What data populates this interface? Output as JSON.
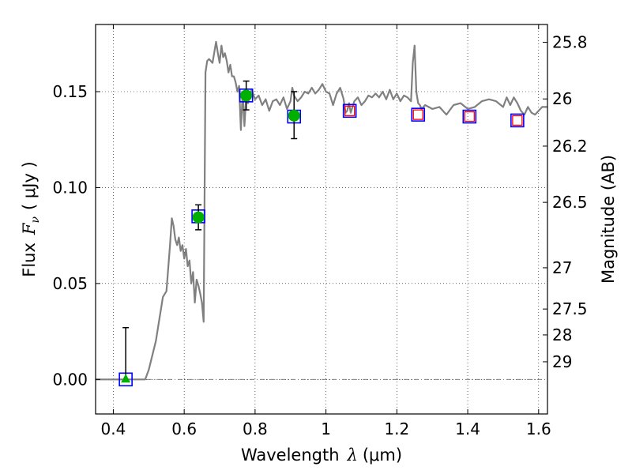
{
  "chart_data": {
    "type": "line",
    "xlabel_prefix": "Wavelength",
    "xlabel_symbol": "λ",
    "xlabel_unit": "(μm)",
    "ylabel_prefix": "Flux",
    "ylabel_symbol": "F",
    "ylabel_subscript": "ν",
    "ylabel_unit": "( μJy )",
    "y2label": "Magnitude (AB)",
    "xlim": [
      0.35,
      1.625
    ],
    "ylim": [
      -0.018,
      0.185
    ],
    "grid": true,
    "x_ticks": [
      0.4,
      0.6,
      0.8,
      1.0,
      1.2,
      1.4,
      1.6
    ],
    "x_tick_labels": [
      "0.4",
      "0.6",
      "0.8",
      "1",
      "1.2",
      "1.4",
      "1.6"
    ],
    "y_ticks": [
      0.0,
      0.05,
      0.1,
      0.15
    ],
    "y_tick_labels": [
      "0.00",
      "0.05",
      "0.10",
      "0.15"
    ],
    "y2_ticks": [
      {
        "label": "25.8",
        "flux": 0.1757
      },
      {
        "label": "26",
        "flux": 0.1462
      },
      {
        "label": "26.2",
        "flux": 0.1216
      },
      {
        "label": "26.5",
        "flux": 0.0923
      },
      {
        "label": "27",
        "flux": 0.0582
      },
      {
        "label": "27.5",
        "flux": 0.0367
      },
      {
        "label": "28",
        "flux": 0.0232
      },
      {
        "label": "29",
        "flux": 0.0092
      }
    ],
    "zero_line": 0.0,
    "model_spectrum": {
      "color": "#808080",
      "x": [
        0.35,
        0.49,
        0.5,
        0.52,
        0.54,
        0.55,
        0.56,
        0.565,
        0.57,
        0.575,
        0.58,
        0.585,
        0.59,
        0.595,
        0.6,
        0.605,
        0.61,
        0.615,
        0.62,
        0.625,
        0.63,
        0.635,
        0.64,
        0.645,
        0.65,
        0.655,
        0.66,
        0.665,
        0.67,
        0.68,
        0.69,
        0.695,
        0.7,
        0.705,
        0.71,
        0.715,
        0.72,
        0.725,
        0.73,
        0.735,
        0.74,
        0.745,
        0.75,
        0.755,
        0.76,
        0.765,
        0.77,
        0.775,
        0.78,
        0.79,
        0.8,
        0.81,
        0.82,
        0.83,
        0.84,
        0.85,
        0.86,
        0.87,
        0.88,
        0.89,
        0.9,
        0.905,
        0.91,
        0.92,
        0.93,
        0.94,
        0.95,
        0.96,
        0.97,
        0.98,
        0.99,
        1.0,
        1.01,
        1.02,
        1.03,
        1.04,
        1.05,
        1.055,
        1.06,
        1.065,
        1.07,
        1.08,
        1.09,
        1.1,
        1.11,
        1.12,
        1.13,
        1.14,
        1.15,
        1.16,
        1.17,
        1.18,
        1.19,
        1.2,
        1.21,
        1.22,
        1.23,
        1.24,
        1.245,
        1.25,
        1.255,
        1.26,
        1.265,
        1.27,
        1.28,
        1.3,
        1.32,
        1.34,
        1.36,
        1.38,
        1.4,
        1.42,
        1.44,
        1.46,
        1.48,
        1.5,
        1.51,
        1.52,
        1.53,
        1.54,
        1.55,
        1.56,
        1.57,
        1.58,
        1.59,
        1.6,
        1.61,
        1.625
      ],
      "y": [
        0.0,
        0.0,
        0.005,
        0.02,
        0.043,
        0.046,
        0.07,
        0.084,
        0.08,
        0.073,
        0.07,
        0.074,
        0.067,
        0.07,
        0.063,
        0.068,
        0.059,
        0.062,
        0.05,
        0.056,
        0.04,
        0.052,
        0.049,
        0.045,
        0.04,
        0.03,
        0.16,
        0.166,
        0.167,
        0.165,
        0.176,
        0.17,
        0.165,
        0.174,
        0.168,
        0.17,
        0.166,
        0.16,
        0.164,
        0.158,
        0.158,
        0.155,
        0.15,
        0.153,
        0.13,
        0.15,
        0.132,
        0.148,
        0.144,
        0.151,
        0.146,
        0.148,
        0.143,
        0.146,
        0.14,
        0.145,
        0.146,
        0.143,
        0.147,
        0.141,
        0.145,
        0.152,
        0.148,
        0.145,
        0.147,
        0.15,
        0.149,
        0.152,
        0.149,
        0.151,
        0.154,
        0.15,
        0.149,
        0.143,
        0.149,
        0.152,
        0.146,
        0.139,
        0.14,
        0.144,
        0.139,
        0.145,
        0.147,
        0.143,
        0.145,
        0.148,
        0.147,
        0.149,
        0.147,
        0.15,
        0.146,
        0.151,
        0.146,
        0.149,
        0.145,
        0.148,
        0.147,
        0.145,
        0.165,
        0.174,
        0.15,
        0.144,
        0.143,
        0.141,
        0.143,
        0.141,
        0.142,
        0.138,
        0.143,
        0.144,
        0.141,
        0.142,
        0.145,
        0.146,
        0.145,
        0.142,
        0.147,
        0.143,
        0.147,
        0.144,
        0.14,
        0.138,
        0.142,
        0.139,
        0.138,
        0.14,
        0.142,
        0.142
      ]
    },
    "boxes": {
      "color": "#0000ff",
      "points": [
        {
          "x": 0.435,
          "y": 0.0
        },
        {
          "x": 0.64,
          "y": 0.085
        },
        {
          "x": 0.775,
          "y": 0.148
        },
        {
          "x": 0.91,
          "y": 0.137
        },
        {
          "x": 1.067,
          "y": 0.14
        },
        {
          "x": 1.26,
          "y": 0.138
        },
        {
          "x": 1.405,
          "y": 0.137
        },
        {
          "x": 1.54,
          "y": 0.135
        }
      ]
    },
    "detections": {
      "color": "#00b000",
      "points": [
        {
          "x": 0.64,
          "y": 0.0845,
          "err_lo": 0.0065,
          "err_hi": 0.0065
        },
        {
          "x": 0.775,
          "y": 0.148,
          "err_lo": 0.0075,
          "err_hi": 0.0075
        },
        {
          "x": 0.91,
          "y": 0.1375,
          "err_lo": 0.012,
          "err_hi": 0.0125
        }
      ]
    },
    "nondetection": {
      "color": "#00b000",
      "x": 0.435,
      "y": 0.0,
      "err_hi": 0.027
    },
    "upper_points": {
      "color": "#ff0000",
      "points": [
        {
          "x": 1.067,
          "y": 0.14
        },
        {
          "x": 1.26,
          "y": 0.138
        },
        {
          "x": 1.405,
          "y": 0.137
        },
        {
          "x": 1.54,
          "y": 0.135
        }
      ]
    }
  }
}
